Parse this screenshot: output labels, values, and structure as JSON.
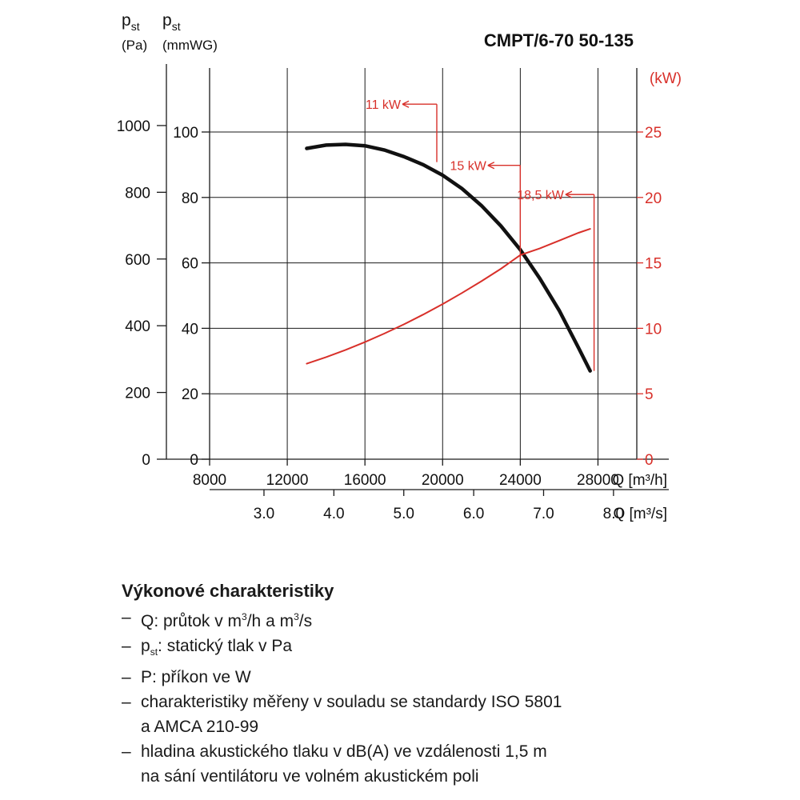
{
  "chart_data": {
    "type": "line",
    "title": "CMPT/6-70 50-135",
    "x": {
      "label": "Q [m³/h]",
      "ticks": [
        8000,
        12000,
        16000,
        20000,
        24000,
        28000
      ],
      "tick_labels": [
        "8000",
        "12000",
        "16000",
        "20000",
        "24000",
        "28000"
      ],
      "range": [
        8000,
        30000
      ]
    },
    "x2": {
      "label": "Q [m³/s]",
      "ticks": [
        3.0,
        4.0,
        5.0,
        6.0,
        7.0,
        8.0
      ],
      "tick_labels": [
        "3.0",
        "4.0",
        "5.0",
        "6.0",
        "7.0",
        "8.0"
      ]
    },
    "y_pa": {
      "label_main": "p",
      "label_sub": "st",
      "unit": "(Pa)",
      "ticks": [
        0,
        200,
        400,
        600,
        800,
        1000
      ],
      "tick_labels": [
        "0",
        "200",
        "400",
        "600",
        "800",
        "1000"
      ]
    },
    "y_mmwg": {
      "label_main": "p",
      "label_sub": "st",
      "unit": "(mmWG)",
      "ticks": [
        0,
        20,
        40,
        60,
        80,
        100
      ],
      "tick_labels": [
        "0",
        "20",
        "40",
        "60",
        "80",
        "100"
      ],
      "range": [
        0,
        100
      ]
    },
    "y_kw": {
      "label": "(kW)",
      "ticks": [
        0,
        5,
        10,
        15,
        20,
        25
      ],
      "tick_labels": [
        "0",
        "5",
        "10",
        "15",
        "20",
        "25"
      ],
      "range": [
        0,
        25
      ]
    },
    "grid": true,
    "series": [
      {
        "axis": "mmwg",
        "color": "#111111",
        "points": [
          [
            13000,
            95
          ],
          [
            14000,
            96
          ],
          [
            15000,
            96.2
          ],
          [
            16000,
            95.8
          ],
          [
            17000,
            94.5
          ],
          [
            18000,
            92.5
          ],
          [
            19000,
            90
          ],
          [
            20000,
            86.8
          ],
          [
            21000,
            82.7
          ],
          [
            22000,
            77.5
          ],
          [
            23000,
            71.3
          ],
          [
            24000,
            64
          ],
          [
            25000,
            55.3
          ],
          [
            26000,
            45.5
          ],
          [
            27000,
            34
          ],
          [
            27600,
            27
          ]
        ]
      },
      {
        "axis": "kw",
        "color": "#d8302a",
        "points": [
          [
            13000,
            7.3
          ],
          [
            14000,
            7.8
          ],
          [
            15000,
            8.35
          ],
          [
            16000,
            8.95
          ],
          [
            17000,
            9.6
          ],
          [
            18000,
            10.3
          ],
          [
            19000,
            11.05
          ],
          [
            20000,
            11.85
          ],
          [
            21000,
            12.7
          ],
          [
            22000,
            13.6
          ],
          [
            23000,
            14.55
          ],
          [
            24000,
            15.6
          ],
          [
            25000,
            16.1
          ],
          [
            26000,
            16.7
          ],
          [
            27000,
            17.3
          ],
          [
            27600,
            17.6
          ]
        ]
      }
    ],
    "annotations": [
      {
        "text": "11 kW",
        "x_line": 19700,
        "label_x": 17600,
        "y_top": 108.5,
        "y_bottom": 90.8
      },
      {
        "text": "15 kW",
        "x_line": 24000,
        "label_x": 22000,
        "y_top": 89.8,
        "y_bottom": 60.3
      },
      {
        "text": "18,5 kW",
        "x_line": 27800,
        "label_x": 26000,
        "y_top": 80.9,
        "y_bottom": 27
      }
    ],
    "colors": {
      "pressure": "#111111",
      "power": "#d8302a",
      "grid": "#1a1a1a"
    }
  },
  "legend": {
    "title": "Výkonové charakteristiky",
    "dash": "–",
    "items": [
      {
        "pre": "Q: průtok v m",
        "sup1": "3",
        "mid": "/h a m",
        "sup2": "3",
        "post": "/s"
      },
      {
        "p": "p",
        "sub": "st",
        "rest": ": statický tlak v Pa"
      },
      {
        "text": "P: příkon ve W"
      },
      {
        "line1": "charakteristiky měřeny v souladu se standardy ISO 5801",
        "line2": "a AMCA 210-99"
      },
      {
        "line1": "hladina akustického tlaku v dB(A) ve vzdálenosti 1,5 m",
        "line2": "na sání ventilátoru ve volném akustickém poli"
      }
    ]
  }
}
